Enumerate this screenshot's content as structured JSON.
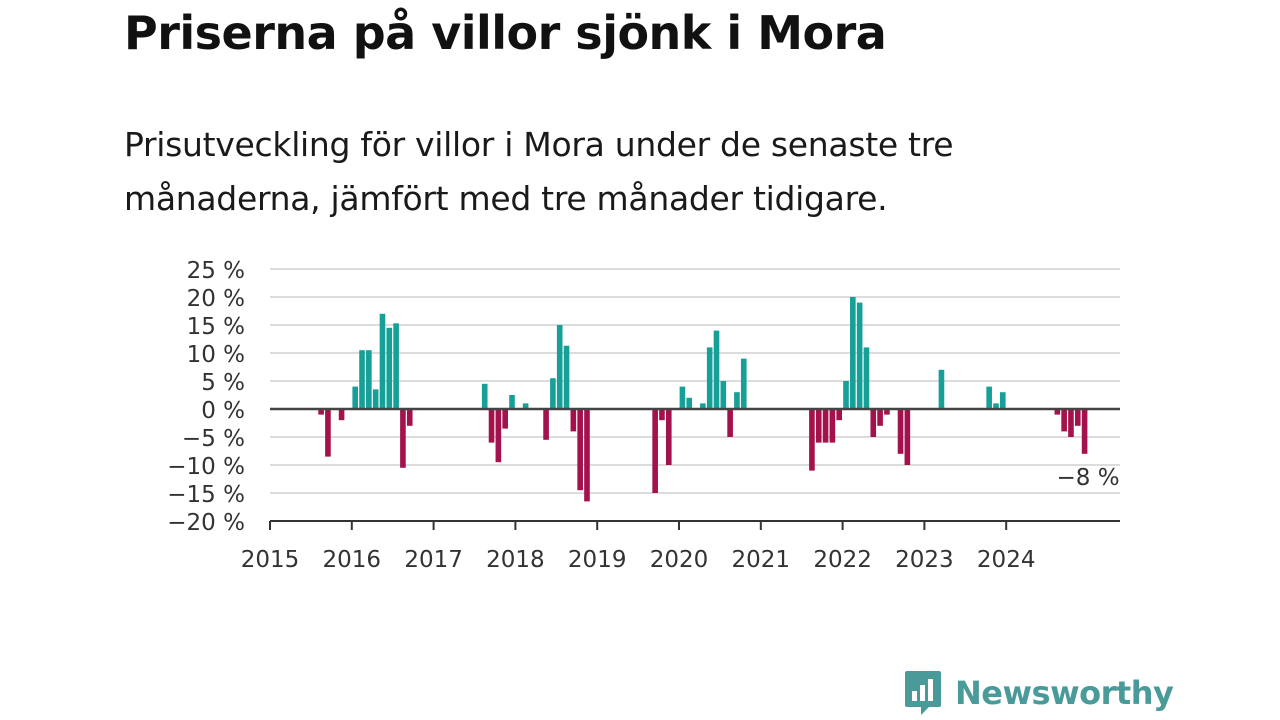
{
  "title": "Priserna på villor sjönk i Mora",
  "subtitle": "Prisutveckling för villor i Mora under de senaste tre månaderna, jämfört med tre månader tidigare.",
  "brand": {
    "name": "Newsworthy",
    "icon": "newsworthy-logo-icon"
  },
  "colors": {
    "positive": "#17a098",
    "negative": "#a3124c",
    "grid": "#dcdcdc",
    "zero_line": "#444444",
    "brand": "#4a9a9a"
  },
  "chart_data": {
    "type": "bar",
    "title": "Priserna på villor sjönk i Mora",
    "subtitle": "Prisutveckling för villor i Mora under de senaste tre månaderna, jämfört med tre månader tidigare.",
    "ylim": [
      -20,
      25
    ],
    "y_ticks": [
      25,
      20,
      15,
      10,
      5,
      0,
      -5,
      -10,
      -15,
      -20
    ],
    "y_tick_labels": [
      "25 %",
      "20 %",
      "15 %",
      "10 %",
      "5 %",
      "0 %",
      "−5 %",
      "−10 %",
      "−15 %",
      "−20 %"
    ],
    "x_ticks": [
      "2015",
      "2016",
      "2017",
      "2018",
      "2019",
      "2020",
      "2021",
      "2022",
      "2023",
      "2024"
    ],
    "grid": true,
    "last_value_label": "−8 %",
    "series": [
      {
        "x": [
          "2015-08",
          "2015-09",
          "2015-11",
          "2016-01",
          "2016-02",
          "2016-03",
          "2016-04",
          "2016-05",
          "2016-06",
          "2016-07",
          "2016-08",
          "2016-09",
          "2017-08",
          "2017-09",
          "2017-10",
          "2017-11",
          "2017-12",
          "2018-02",
          "2018-05",
          "2018-06",
          "2018-07",
          "2018-08",
          "2018-09",
          "2018-10",
          "2018-11",
          "2019-09",
          "2019-10",
          "2019-11",
          "2020-01",
          "2020-02",
          "2020-04",
          "2020-05",
          "2020-06",
          "2020-07",
          "2020-08",
          "2020-09",
          "2020-10",
          "2021-08",
          "2021-09",
          "2021-10",
          "2021-11",
          "2021-12",
          "2022-01",
          "2022-02",
          "2022-03",
          "2022-04",
          "2022-05",
          "2022-06",
          "2022-07",
          "2022-09",
          "2022-10",
          "2023-03",
          "2023-10",
          "2023-11",
          "2023-12",
          "2024-08",
          "2024-09",
          "2024-10",
          "2024-11",
          "2024-12"
        ],
        "values": [
          -1,
          -8.5,
          -2,
          4,
          10.5,
          10.5,
          3.5,
          17,
          14.5,
          15.3,
          -10.5,
          -3,
          4.5,
          -6,
          -9.5,
          -3.5,
          2.5,
          1,
          -5.5,
          5.5,
          15,
          11.3,
          -4,
          -14.5,
          -16.5,
          -15,
          -2,
          -10,
          4,
          2,
          1,
          11,
          14,
          5,
          -5,
          3,
          9,
          -11,
          -6,
          -6,
          -6,
          -2,
          5,
          20,
          19,
          11,
          -5,
          -3,
          -1,
          -8,
          -10,
          7,
          4,
          1,
          3,
          -1,
          -4,
          -5,
          -3,
          -8
        ]
      }
    ]
  }
}
